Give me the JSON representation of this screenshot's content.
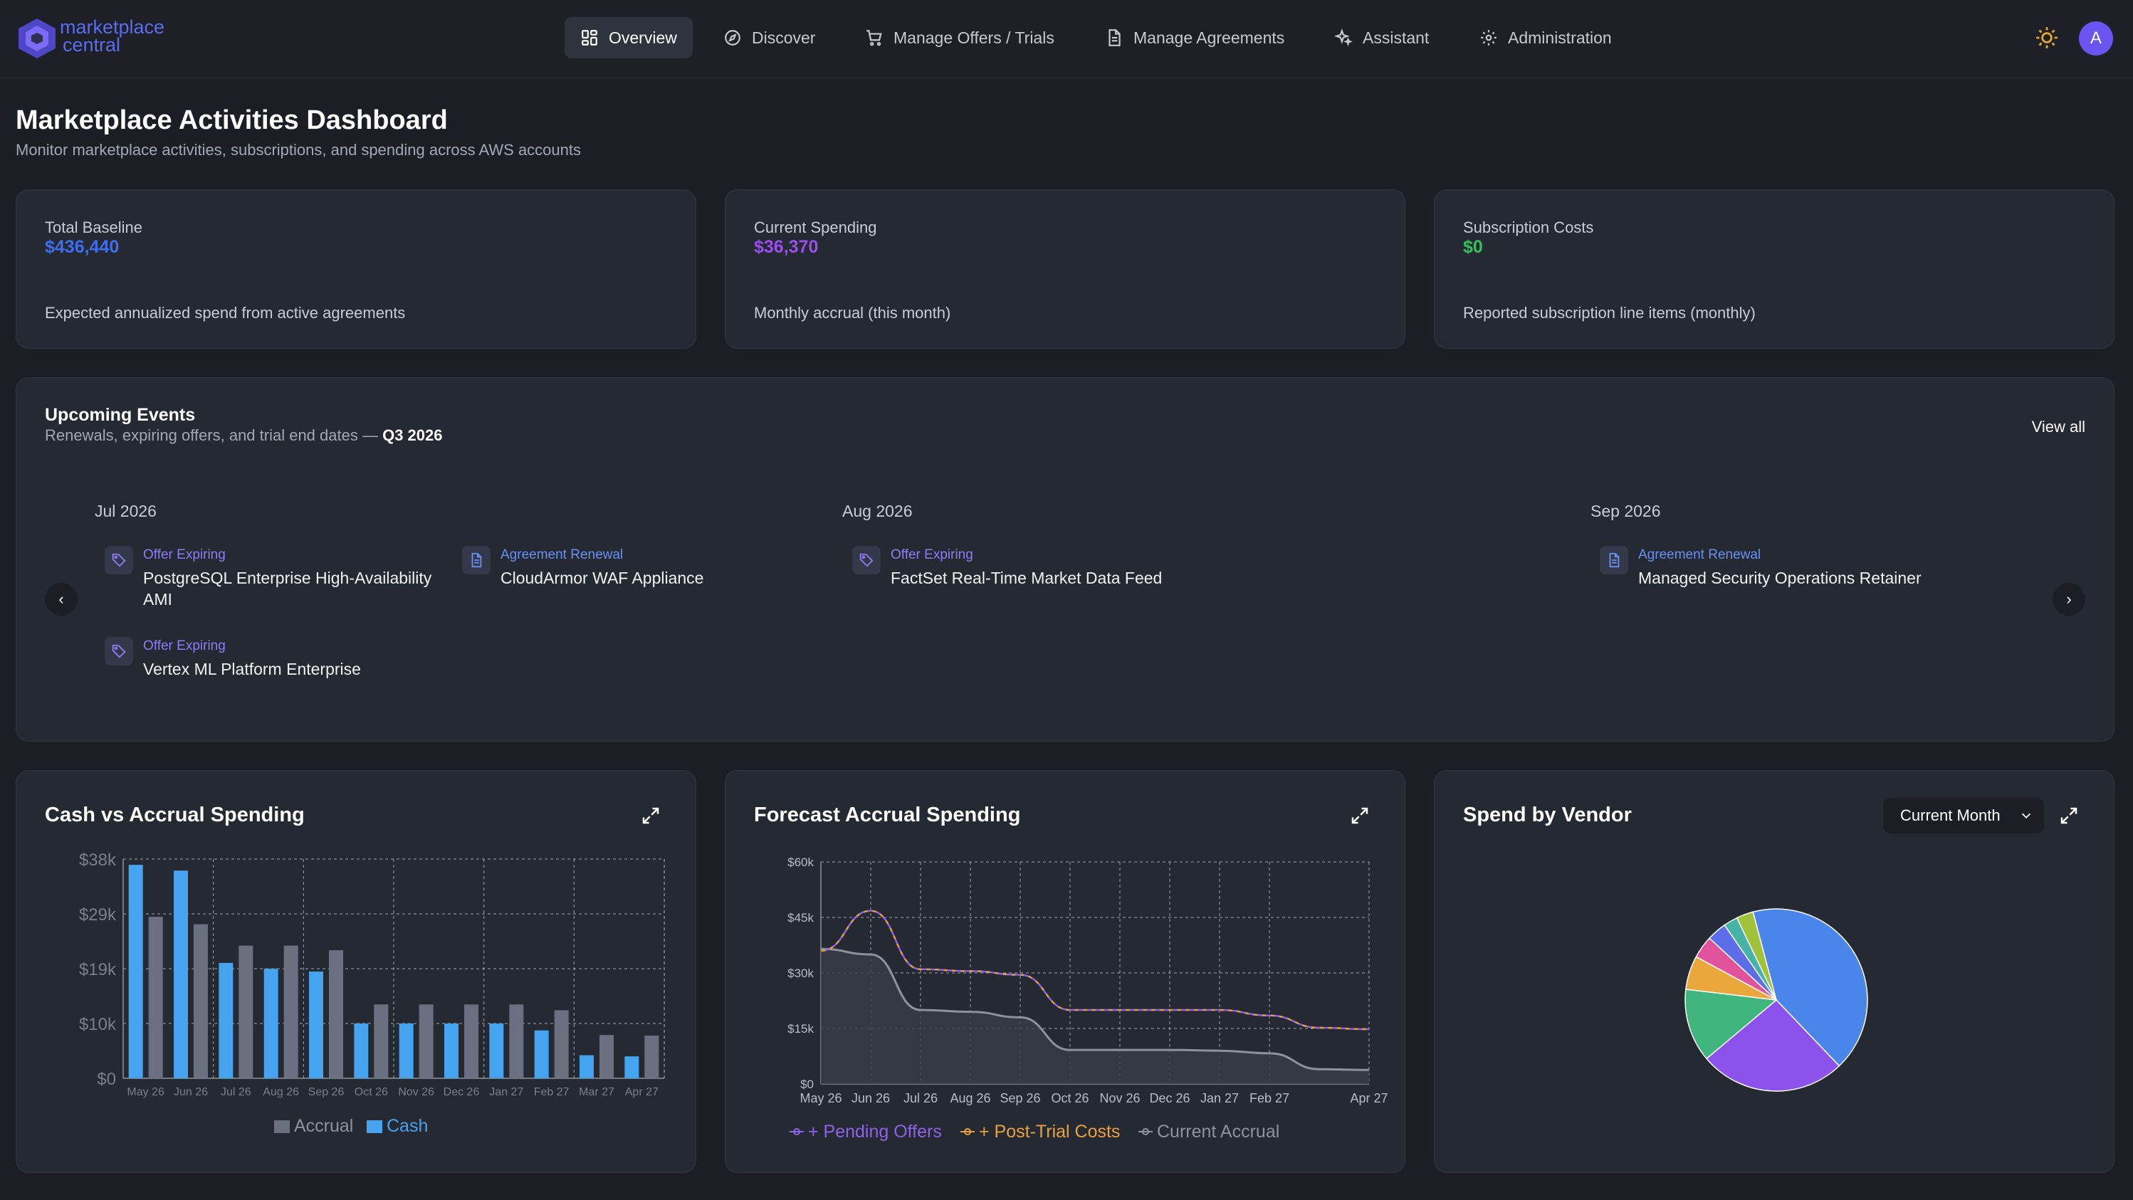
{
  "nav": {
    "logo_line1": "marketplace",
    "logo_line2": "central",
    "items": [
      {
        "label": "Overview",
        "icon": "grid-icon",
        "active": true
      },
      {
        "label": "Discover",
        "icon": "compass-icon",
        "active": false
      },
      {
        "label": "Manage Offers / Trials",
        "icon": "cart-icon",
        "active": false
      },
      {
        "label": "Manage Agreements",
        "icon": "document-icon",
        "active": false
      },
      {
        "label": "Assistant",
        "icon": "sparkles-icon",
        "active": false
      },
      {
        "label": "Administration",
        "icon": "gear-icon",
        "active": false
      }
    ],
    "avatar_initial": "A"
  },
  "page": {
    "title": "Marketplace Activities Dashboard",
    "subtitle": "Monitor marketplace activities, subscriptions, and spending across AWS accounts"
  },
  "kpis": [
    {
      "label": "Total Baseline",
      "value": "$436,440",
      "color": "#3f6ff0",
      "desc": "Expected annualized spend from active agreements"
    },
    {
      "label": "Current Spending",
      "value": "$36,370",
      "color": "#9a4ef0",
      "desc": "Monthly accrual (this month)"
    },
    {
      "label": "Subscription Costs",
      "value": "$0",
      "color": "#33c25a",
      "desc": "Reported subscription line items (monthly)"
    }
  ],
  "events": {
    "title": "Upcoming Events",
    "subtitle_prefix": "Renewals, expiring offers, and trial end dates —",
    "quarter": "Q3 2026",
    "view_all": "View all",
    "months": [
      {
        "label": "Jul 2026",
        "items": [
          {
            "type": "Offer Expiring",
            "name": "PostgreSQL Enterprise High-Availability AMI",
            "icon": "tag-icon"
          },
          {
            "type": "Agreement Renewal",
            "name": "CloudArmor WAF Appliance",
            "icon": "document-icon"
          },
          {
            "type": "Offer Expiring",
            "name": "Vertex ML Platform Enterprise",
            "icon": "tag-icon"
          }
        ]
      },
      {
        "label": "Aug 2026",
        "items": [
          {
            "type": "Offer Expiring",
            "name": "FactSet Real-Time Market Data Feed",
            "icon": "tag-icon"
          }
        ]
      },
      {
        "label": "Sep 2026",
        "items": [
          {
            "type": "Agreement Renewal",
            "name": "Managed Security Operations Retainer",
            "icon": "document-icon"
          }
        ]
      }
    ]
  },
  "cash_chart": {
    "title": "Cash vs Accrual Spending",
    "legend_accrual": "Accrual",
    "legend_cash": "Cash"
  },
  "forecast_chart": {
    "title": "Forecast Accrual Spending",
    "legend_pending": "+ Pending Offers",
    "legend_post_trial": "+ Post-Trial Costs",
    "legend_current": "Current Accrual"
  },
  "vendor_chart": {
    "title": "Spend by Vendor",
    "select_value": "Current Month"
  },
  "chart_data": [
    {
      "type": "bar",
      "title": "Cash vs Accrual Spending",
      "categories": [
        "May 26",
        "Jun 26",
        "Jul 26",
        "Aug 26",
        "Sep 26",
        "Oct 26",
        "Nov 26",
        "Dec 26",
        "Jan 27",
        "Feb 27",
        "Mar 27",
        "Apr 27"
      ],
      "series": [
        {
          "name": "Cash",
          "color": "#45a3f0",
          "values": [
            37000,
            36000,
            20000,
            19000,
            18500,
            9500,
            9500,
            9500,
            9500,
            8300,
            4000,
            3800
          ]
        },
        {
          "name": "Accrual",
          "color": "#6b7080",
          "values": [
            28000,
            26700,
            23000,
            23000,
            22200,
            12800,
            12800,
            12800,
            12800,
            11800,
            7500,
            7400
          ]
        }
      ],
      "yticks": [
        "$0",
        "$10k",
        "$19k",
        "$29k",
        "$38k"
      ],
      "ylim": [
        0,
        38000
      ],
      "legend": "bottom",
      "grid": true
    },
    {
      "type": "line",
      "title": "Forecast Accrual Spending",
      "x": [
        "May 26",
        "Jun 26",
        "Jul 26",
        "Aug 26",
        "Sep 26",
        "Oct 26",
        "Nov 26",
        "Dec 26",
        "Jan 27",
        "Feb 27",
        "Apr 27"
      ],
      "x_positions": [
        0,
        1,
        2,
        3,
        4,
        5,
        6,
        7,
        8,
        9,
        11
      ],
      "series": [
        {
          "name": "+ Pending Offers",
          "color": "#8d63e8",
          "points": [
            [
              0,
              36000
            ],
            [
              1,
              46800
            ],
            [
              2,
              31000
            ],
            [
              3,
              30500
            ],
            [
              4,
              29500
            ],
            [
              5,
              20000
            ],
            [
              6,
              20000
            ],
            [
              7,
              20000
            ],
            [
              8,
              20000
            ],
            [
              9,
              18500
            ],
            [
              10,
              15200
            ],
            [
              11,
              14800
            ]
          ]
        },
        {
          "name": "+ Post-Trial Costs",
          "color": "#e9a23b",
          "points": [
            [
              0,
              36000
            ],
            [
              1,
              46800
            ],
            [
              2,
              31000
            ],
            [
              3,
              30500
            ],
            [
              4,
              29500
            ],
            [
              5,
              20000
            ],
            [
              6,
              20000
            ],
            [
              7,
              20000
            ],
            [
              8,
              20000
            ],
            [
              9,
              18500
            ],
            [
              10,
              15200
            ],
            [
              11,
              14800
            ]
          ]
        },
        {
          "name": "Current Accrual",
          "color": "#8e929c",
          "points": [
            [
              0,
              36500
            ],
            [
              1,
              35000
            ],
            [
              2,
              20000
            ],
            [
              3,
              19500
            ],
            [
              4,
              18000
            ],
            [
              5,
              9200
            ],
            [
              6,
              9200
            ],
            [
              7,
              9200
            ],
            [
              8,
              9000
            ],
            [
              9,
              8300
            ],
            [
              10,
              4000
            ],
            [
              11,
              3800
            ]
          ]
        }
      ],
      "yticks": [
        "$0",
        "$15k",
        "$30k",
        "$45k",
        "$60k"
      ],
      "ylim": [
        0,
        60000
      ],
      "legend": "bottom",
      "grid": true
    },
    {
      "type": "pie",
      "title": "Spend by Vendor",
      "values": [
        42,
        26,
        13,
        6,
        4,
        3.5,
        2.5,
        3
      ],
      "colors": [
        "#4a86ea",
        "#8b52ec",
        "#40b57d",
        "#eaa73c",
        "#e0539c",
        "#5c6ee8",
        "#45b4a6",
        "#a0c23a"
      ]
    }
  ]
}
